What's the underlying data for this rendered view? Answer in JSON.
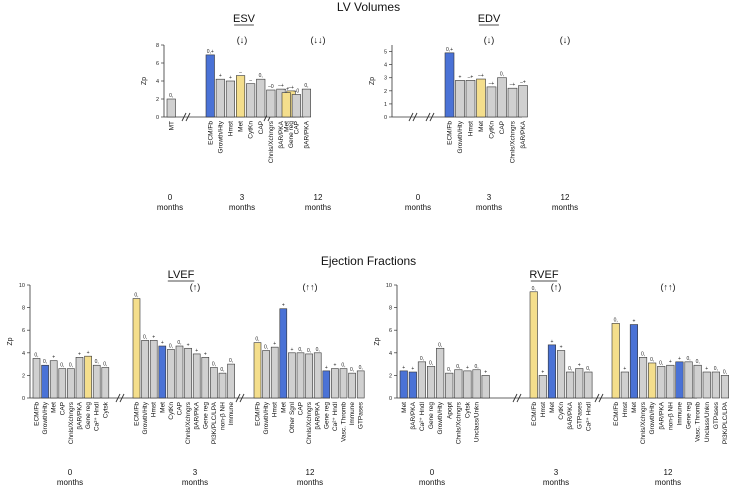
{
  "sections": {
    "volumes_title": "LV Volumes",
    "fractions_title": "Ejection Fractions"
  },
  "colors": {
    "blue": "#4a72d6",
    "yellow": "#f4de8c",
    "gray": "#d0d0d0",
    "edge": "#333333"
  },
  "chart_data": [
    {
      "id": "esv",
      "type": "bar",
      "title": "ESV",
      "ylabel": "Zp",
      "ylim": [
        0,
        8
      ],
      "yticks": [
        0,
        2,
        4,
        6,
        8
      ],
      "groups": [
        {
          "month": "0",
          "unit": "months",
          "arrow": "",
          "bars": [
            {
              "label": "MT",
              "value": 2.0,
              "color": "gray",
              "sig": "0,"
            }
          ]
        },
        {
          "month": "3",
          "unit": "months",
          "arrow": "(↓)",
          "bars": [
            {
              "label": "ECM/Fb",
              "value": 6.9,
              "color": "blue",
              "sig": "0,+"
            },
            {
              "label": "Growth/Hty",
              "value": 4.2,
              "color": "gray",
              "sig": "+"
            },
            {
              "label": "Hmst",
              "value": 4.0,
              "color": "gray",
              "sig": "+"
            },
            {
              "label": "Met",
              "value": 4.6,
              "color": "yellow",
              "sig": "–"
            },
            {
              "label": "CytKn",
              "value": 3.7,
              "color": "gray",
              "sig": "–"
            },
            {
              "label": "CAP",
              "value": 4.2,
              "color": "gray",
              "sig": "0,"
            },
            {
              "label": "Chnls/Xchngrs",
              "value": 3.0,
              "color": "gray",
              "sig": "–0"
            },
            {
              "label": "βAR/PKA",
              "value": 3.1,
              "color": "gray",
              "sig": "–+"
            },
            {
              "label": "Gene reg",
              "value": 2.9,
              "color": "yellow",
              "sig": "–+"
            }
          ]
        },
        {
          "month": "12",
          "unit": "months",
          "arrow": "(↓↓)",
          "bars": [
            {
              "label": "Met",
              "value": 2.7,
              "color": "yellow",
              "sig": "–+"
            },
            {
              "label": "CAP",
              "value": 2.5,
              "color": "gray",
              "sig": "–0"
            },
            {
              "label": "βAR/PKA",
              "value": 3.1,
              "color": "gray",
              "sig": "0,"
            }
          ]
        }
      ]
    },
    {
      "id": "edv",
      "type": "bar",
      "title": "EDV",
      "ylabel": "Zp",
      "ylim": [
        0,
        5.5
      ],
      "yticks": [
        0,
        1,
        2,
        3,
        4,
        5
      ],
      "groups": [
        {
          "month": "0",
          "unit": "months",
          "arrow": "",
          "bars": []
        },
        {
          "month": "3",
          "unit": "months",
          "arrow": "(↓)",
          "bars": [
            {
              "label": "ECM/Fb",
              "value": 4.9,
              "color": "blue",
              "sig": "0,+"
            },
            {
              "label": "Growth/Hty",
              "value": 2.8,
              "color": "gray",
              "sig": "+"
            },
            {
              "label": "Hmst",
              "value": 2.8,
              "color": "gray",
              "sig": "–+"
            },
            {
              "label": "Met",
              "value": 2.9,
              "color": "yellow",
              "sig": "–+"
            },
            {
              "label": "CytKn",
              "value": 2.3,
              "color": "gray",
              "sig": "–+"
            },
            {
              "label": "CAP",
              "value": 3.0,
              "color": "gray",
              "sig": "0,"
            },
            {
              "label": "Chnls/Xchngrs",
              "value": 2.2,
              "color": "gray",
              "sig": "–+"
            },
            {
              "label": "βAR/PKA",
              "value": 2.4,
              "color": "gray",
              "sig": "–+"
            }
          ]
        },
        {
          "month": "12",
          "unit": "months",
          "arrow": "(↓)",
          "bars": []
        }
      ]
    },
    {
      "id": "lvef",
      "type": "bar",
      "title": "LVEF",
      "ylabel": "Zp",
      "ylim": [
        0,
        10
      ],
      "yticks": [
        0,
        2,
        4,
        6,
        8,
        10
      ],
      "groups": [
        {
          "month": "0",
          "unit": "months",
          "arrow": "",
          "bars": [
            {
              "label": "ECM/Fb",
              "value": 3.5,
              "color": "gray",
              "sig": "0,"
            },
            {
              "label": "Growth/Hty",
              "value": 2.9,
              "color": "blue",
              "sig": "0,"
            },
            {
              "label": "Met",
              "value": 3.3,
              "color": "gray",
              "sig": "+"
            },
            {
              "label": "CAP",
              "value": 2.6,
              "color": "gray",
              "sig": "0,"
            },
            {
              "label": "Chnls/Xchngrs",
              "value": 2.6,
              "color": "gray",
              "sig": "0,"
            },
            {
              "label": "βAR/PKA",
              "value": 3.6,
              "color": "gray",
              "sig": "+"
            },
            {
              "label": "Gene reg",
              "value": 3.7,
              "color": "yellow",
              "sig": "+"
            },
            {
              "label": "Ca²⁺ Hndl",
              "value": 2.9,
              "color": "gray",
              "sig": "0,"
            },
            {
              "label": "Cytsk",
              "value": 2.7,
              "color": "gray",
              "sig": "0,"
            }
          ]
        },
        {
          "month": "3",
          "unit": "months",
          "arrow": "(↑)",
          "bars": [
            {
              "label": "ECM/Fb",
              "value": 8.8,
              "color": "yellow",
              "sig": "0,"
            },
            {
              "label": "Growth/Hty",
              "value": 5.1,
              "color": "gray",
              "sig": "0,"
            },
            {
              "label": "Hmst",
              "value": 5.1,
              "color": "gray",
              "sig": "+"
            },
            {
              "label": "Met",
              "value": 4.6,
              "color": "blue",
              "sig": "+"
            },
            {
              "label": "CytKn",
              "value": 4.3,
              "color": "gray",
              "sig": "0,"
            },
            {
              "label": "CAP",
              "value": 4.6,
              "color": "gray",
              "sig": "0,"
            },
            {
              "label": "Chnls/Xchngrs",
              "value": 4.4,
              "color": "gray",
              "sig": "+"
            },
            {
              "label": "βAR/PKA",
              "value": 3.9,
              "color": "gray",
              "sig": "+"
            },
            {
              "label": "Gene reg",
              "value": 3.6,
              "color": "gray",
              "sig": "+"
            },
            {
              "label": "PI3K/PLC/LPA",
              "value": 2.7,
              "color": "gray",
              "sig": "0,"
            },
            {
              "label": "non-β NH",
              "value": 2.2,
              "color": "gray",
              "sig": "0,"
            },
            {
              "label": "Immune",
              "value": 3.0,
              "color": "gray",
              "sig": "0,"
            }
          ]
        },
        {
          "month": "12",
          "unit": "months",
          "arrow": "(↑↑)",
          "bars": [
            {
              "label": "ECM/Fb",
              "value": 4.9,
              "color": "yellow",
              "sig": "0,"
            },
            {
              "label": "Growth/Hty",
              "value": 4.2,
              "color": "gray",
              "sig": "0,"
            },
            {
              "label": "Hmst",
              "value": 4.5,
              "color": "gray",
              "sig": "+"
            },
            {
              "label": "Met",
              "value": 7.9,
              "color": "blue",
              "sig": "+"
            },
            {
              "label": "Other Sgnl",
              "value": 4.0,
              "color": "gray",
              "sig": "+"
            },
            {
              "label": "CAP",
              "value": 4.0,
              "color": "gray",
              "sig": "0,"
            },
            {
              "label": "Chnls/Xchngrs",
              "value": 3.9,
              "color": "gray",
              "sig": "0,"
            },
            {
              "label": "βAR/PKA",
              "value": 4.0,
              "color": "gray",
              "sig": "0,"
            },
            {
              "label": "Gene reg",
              "value": 2.4,
              "color": "blue",
              "sig": "+"
            },
            {
              "label": "Ca²⁺ Hndl",
              "value": 2.6,
              "color": "gray",
              "sig": "+"
            },
            {
              "label": "Vasc. Thromb",
              "value": 2.6,
              "color": "gray",
              "sig": "0,"
            },
            {
              "label": "Immune",
              "value": 2.2,
              "color": "gray",
              "sig": "0,"
            },
            {
              "label": "GTPases",
              "value": 2.4,
              "color": "gray",
              "sig": "0,"
            }
          ]
        }
      ]
    },
    {
      "id": "rvef",
      "type": "bar",
      "title": "RVEF",
      "ylabel": "Zp",
      "ylim": [
        0,
        10
      ],
      "yticks": [
        0,
        2,
        4,
        6,
        8,
        10
      ],
      "groups": [
        {
          "month": "0",
          "unit": "months",
          "arrow": "",
          "bars": [
            {
              "label": "Met",
              "value": 2.4,
              "color": "blue",
              "sig": "+"
            },
            {
              "label": "βAR/PKA",
              "value": 2.3,
              "color": "blue",
              "sig": "+"
            },
            {
              "label": "Ca²⁺ Hndl",
              "value": 3.2,
              "color": "gray",
              "sig": "0,"
            },
            {
              "label": "Gene reg",
              "value": 2.8,
              "color": "gray",
              "sig": "0,"
            },
            {
              "label": "Growth/Hty",
              "value": 4.4,
              "color": "gray",
              "sig": "0,"
            },
            {
              "label": "Apopt",
              "value": 2.2,
              "color": "gray",
              "sig": "0,"
            },
            {
              "label": "Chnls/Xchngrs",
              "value": 2.5,
              "color": "gray",
              "sig": "0,"
            },
            {
              "label": "Cytsk",
              "value": 2.4,
              "color": "gray",
              "sig": "+"
            },
            {
              "label": "Unclass/Unkn",
              "value": 2.5,
              "color": "gray",
              "sig": "0,"
            },
            {
              "label": "",
              "value": 2.0,
              "color": "gray",
              "sig": "+"
            }
          ]
        },
        {
          "month": "3",
          "unit": "months",
          "arrow": "(↑)",
          "bars": [
            {
              "label": "ECM/Fb",
              "value": 9.4,
              "color": "yellow",
              "sig": "0,"
            },
            {
              "label": "Hmst",
              "value": 2.0,
              "color": "gray",
              "sig": "+"
            },
            {
              "label": "Met",
              "value": 4.7,
              "color": "blue",
              "sig": "+"
            },
            {
              "label": "CytKn",
              "value": 4.2,
              "color": "gray",
              "sig": "+"
            },
            {
              "label": "βAR/PKA",
              "value": 2.3,
              "color": "gray",
              "sig": "0,"
            },
            {
              "label": "GTPases",
              "value": 2.6,
              "color": "gray",
              "sig": "+"
            },
            {
              "label": "Ca²⁺ Hndl",
              "value": 2.3,
              "color": "gray",
              "sig": "0,"
            }
          ]
        },
        {
          "month": "12",
          "unit": "months",
          "arrow": "(↑↑)",
          "bars": [
            {
              "label": "ECM/Fb",
              "value": 6.6,
              "color": "yellow",
              "sig": "0,"
            },
            {
              "label": "Hmst",
              "value": 2.3,
              "color": "gray",
              "sig": "+"
            },
            {
              "label": "Met",
              "value": 6.5,
              "color": "blue",
              "sig": "+"
            },
            {
              "label": "Chnls/Xchngrs",
              "value": 3.6,
              "color": "gray",
              "sig": "0,"
            },
            {
              "label": "Growth/Hty",
              "value": 3.1,
              "color": "yellow",
              "sig": "0,"
            },
            {
              "label": "βAR/PKA",
              "value": 2.8,
              "color": "gray",
              "sig": "0,"
            },
            {
              "label": "non-β NH",
              "value": 2.9,
              "color": "gray",
              "sig": "+"
            },
            {
              "label": "Immune",
              "value": 3.2,
              "color": "blue",
              "sig": "+"
            },
            {
              "label": "Gene reg",
              "value": 3.2,
              "color": "gray",
              "sig": "0,"
            },
            {
              "label": "Vasc. Thromb",
              "value": 2.9,
              "color": "gray",
              "sig": "0,"
            },
            {
              "label": "Unclass/Unkn",
              "value": 2.3,
              "color": "gray",
              "sig": "+"
            },
            {
              "label": "GTPases",
              "value": 2.3,
              "color": "gray",
              "sig": "0,"
            },
            {
              "label": "PI3K/PLC/LPA",
              "value": 2.0,
              "color": "gray",
              "sig": "0,"
            }
          ]
        }
      ]
    }
  ]
}
